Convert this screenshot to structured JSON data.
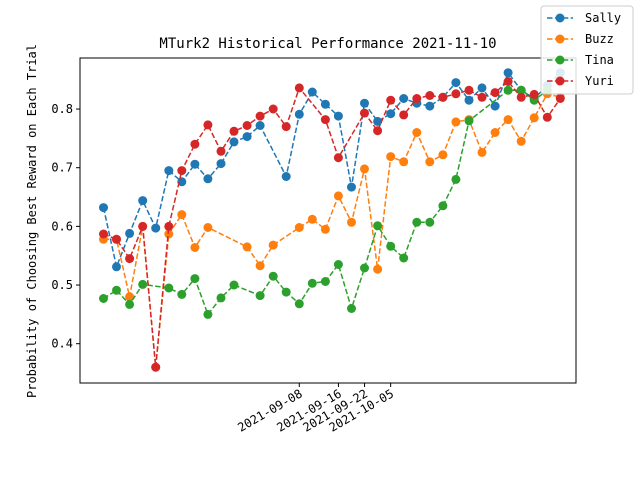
{
  "chart_data": {
    "type": "line",
    "title": "MTurk2 Historical Performance 2021-11-10",
    "xlabel": "",
    "ylabel": "Probability of Choosing Best Reward on Each Trial",
    "ylim": [
      0.333,
      0.887
    ],
    "yticks": [
      0.4,
      0.5,
      0.6,
      0.7,
      0.8
    ],
    "yticklabels": [
      "0.4",
      "0.5",
      "0.6",
      "0.7",
      "0.8"
    ],
    "xlim": [
      -1.8,
      36.2
    ],
    "xticks": [
      15,
      18,
      20,
      22
    ],
    "xticklabels": [
      "2021-09-08",
      "2021-09-16",
      "2021-09-22",
      "2021-10-05"
    ],
    "legend_position": "top-right",
    "series": [
      {
        "name": "Sally",
        "color": "#1f77b4",
        "x": [
          0,
          1,
          2,
          3,
          4,
          5,
          6,
          7,
          8,
          9,
          10,
          11,
          12,
          13,
          14,
          15,
          16,
          17,
          18,
          19,
          20,
          21,
          22,
          23,
          24,
          25,
          26,
          27,
          28,
          29,
          30,
          31,
          32,
          33,
          34,
          35
        ],
        "values": [
          0.632,
          0.531,
          0.588,
          0.644,
          0.597,
          0.695,
          0.676,
          0.706,
          0.681,
          0.707,
          0.744,
          0.753,
          0.772,
          null,
          0.685,
          0.791,
          0.829,
          0.808,
          0.788,
          0.667,
          0.81,
          0.779,
          0.792,
          0.818,
          0.81,
          0.805,
          0.82,
          0.845,
          0.815,
          0.836,
          0.805,
          0.862,
          0.832,
          0.818,
          0.84,
          0.862
        ]
      },
      {
        "name": "Buzz",
        "color": "#ff7f0e",
        "x": [
          0,
          1,
          2,
          3,
          4,
          5,
          6,
          7,
          8,
          9,
          10,
          11,
          12,
          13,
          14,
          15,
          16,
          17,
          18,
          19,
          20,
          21,
          22,
          23,
          24,
          25,
          26,
          27,
          28,
          29,
          30,
          31,
          32,
          33,
          34,
          35
        ],
        "values": [
          0.578,
          0.578,
          0.48,
          0.6,
          0.36,
          0.587,
          0.62,
          0.564,
          0.598,
          null,
          null,
          0.565,
          0.533,
          0.568,
          null,
          0.598,
          0.612,
          0.595,
          0.652,
          0.607,
          0.698,
          0.527,
          0.719,
          0.71,
          0.76,
          0.71,
          0.722,
          0.778,
          0.782,
          0.726,
          0.76,
          0.782,
          0.745,
          0.785,
          0.826,
          0.82
        ]
      },
      {
        "name": "Tina",
        "color": "#2ca02c",
        "x": [
          0,
          1,
          2,
          3,
          4,
          5,
          6,
          7,
          8,
          9,
          10,
          11,
          12,
          13,
          14,
          15,
          16,
          17,
          18,
          19,
          20,
          21,
          22,
          23,
          24,
          25,
          26,
          27,
          28,
          29,
          30,
          31,
          32,
          33,
          34,
          35
        ],
        "values": [
          0.477,
          0.491,
          0.467,
          0.501,
          null,
          0.495,
          0.484,
          0.511,
          0.45,
          0.478,
          0.5,
          null,
          0.482,
          0.515,
          0.488,
          0.468,
          0.503,
          0.506,
          0.535,
          0.46,
          0.529,
          0.601,
          0.566,
          0.546,
          0.607,
          0.607,
          0.635,
          0.68,
          0.78,
          null,
          null,
          0.832,
          0.832,
          0.815,
          0.832,
          null
        ]
      },
      {
        "name": "Yuri",
        "color": "#d62728",
        "x": [
          0,
          1,
          2,
          3,
          4,
          5,
          6,
          7,
          8,
          9,
          10,
          11,
          12,
          13,
          14,
          15,
          16,
          17,
          18,
          19,
          20,
          21,
          22,
          23,
          24,
          25,
          26,
          27,
          28,
          29,
          30,
          31,
          32,
          33,
          34,
          35
        ],
        "values": [
          0.587,
          0.578,
          0.545,
          0.6,
          0.36,
          0.6,
          0.695,
          0.74,
          0.773,
          0.728,
          0.762,
          0.772,
          0.788,
          0.8,
          0.77,
          0.836,
          null,
          0.782,
          0.717,
          null,
          0.793,
          0.763,
          0.815,
          0.79,
          0.818,
          0.823,
          0.82,
          0.826,
          0.832,
          0.82,
          0.828,
          0.847,
          0.82,
          0.825,
          0.786,
          0.818
        ]
      }
    ]
  }
}
